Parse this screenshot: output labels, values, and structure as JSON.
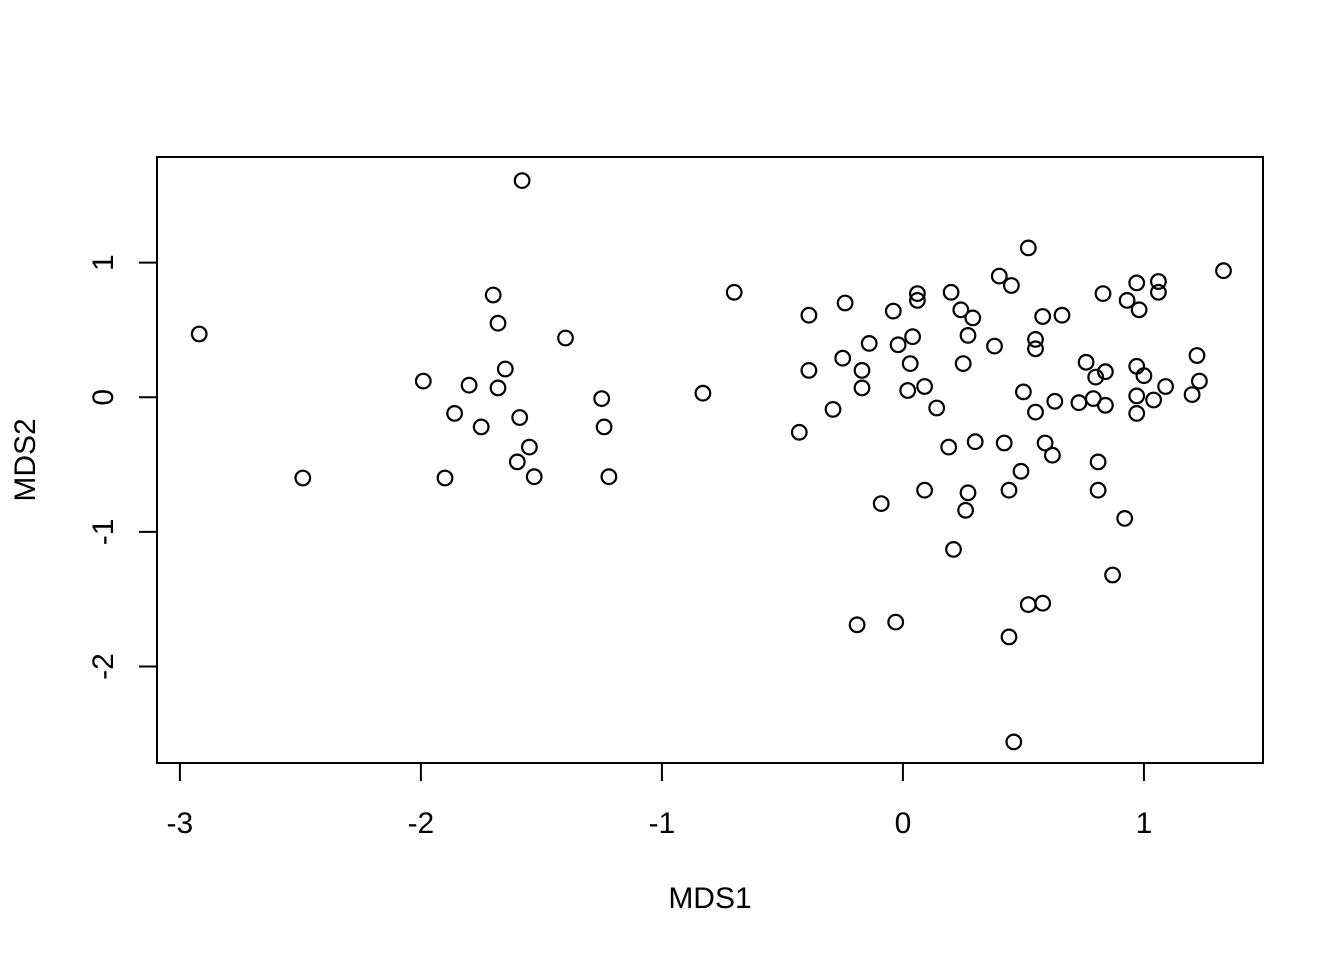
{
  "figure": {
    "background": "#ffffff",
    "axis_color": "#000000",
    "text_color": "#000000"
  },
  "chart_data": {
    "type": "scatter",
    "title": "",
    "xlabel": "MDS1",
    "ylabel": "MDS2",
    "marker": "open-circle",
    "marker_color": "#000000",
    "grid": false,
    "legend_position": "none",
    "xlim": [
      -3.095,
      1.494
    ],
    "ylim": [
      -2.717,
      1.785
    ],
    "x_ticks": [
      -3,
      -2,
      -1,
      0,
      1
    ],
    "x_tick_labels": [
      "-3",
      "-2",
      "-1",
      "0",
      "1"
    ],
    "y_ticks": [
      -2,
      -1,
      0,
      1
    ],
    "y_tick_labels": [
      "-2",
      "-1",
      "0",
      "1"
    ],
    "points": [
      [
        -2.92,
        0.47
      ],
      [
        -2.49,
        -0.6
      ],
      [
        -1.99,
        0.12
      ],
      [
        -1.9,
        -0.6
      ],
      [
        -1.86,
        -0.12
      ],
      [
        -1.8,
        0.09
      ],
      [
        -1.75,
        -0.22
      ],
      [
        -1.7,
        0.76
      ],
      [
        -1.68,
        0.55
      ],
      [
        -1.68,
        0.07
      ],
      [
        -1.65,
        0.21
      ],
      [
        -1.6,
        -0.48
      ],
      [
        -1.59,
        -0.15
      ],
      [
        -1.58,
        1.61
      ],
      [
        -1.55,
        -0.37
      ],
      [
        -1.53,
        -0.59
      ],
      [
        -1.4,
        0.44
      ],
      [
        -1.25,
        -0.01
      ],
      [
        -1.24,
        -0.22
      ],
      [
        -1.22,
        -0.59
      ],
      [
        -0.83,
        0.03
      ],
      [
        -0.7,
        0.78
      ],
      [
        -0.43,
        -0.26
      ],
      [
        -0.39,
        0.61
      ],
      [
        -0.39,
        0.2
      ],
      [
        -0.29,
        -0.09
      ],
      [
        -0.25,
        0.29
      ],
      [
        -0.24,
        0.7
      ],
      [
        -0.19,
        -1.69
      ],
      [
        -0.17,
        0.2
      ],
      [
        -0.17,
        0.07
      ],
      [
        -0.14,
        0.4
      ],
      [
        -0.09,
        -0.79
      ],
      [
        -0.04,
        0.64
      ],
      [
        -0.03,
        -1.67
      ],
      [
        -0.02,
        0.39
      ],
      [
        0.02,
        0.05
      ],
      [
        0.03,
        0.25
      ],
      [
        0.04,
        0.45
      ],
      [
        0.06,
        0.77
      ],
      [
        0.06,
        0.72
      ],
      [
        0.09,
        0.08
      ],
      [
        0.09,
        -0.69
      ],
      [
        0.14,
        -0.08
      ],
      [
        0.19,
        -0.37
      ],
      [
        0.2,
        0.78
      ],
      [
        0.21,
        -1.13
      ],
      [
        0.24,
        0.65
      ],
      [
        0.25,
        0.25
      ],
      [
        0.26,
        -0.84
      ],
      [
        0.27,
        0.46
      ],
      [
        0.27,
        -0.71
      ],
      [
        0.29,
        0.59
      ],
      [
        0.3,
        -0.33
      ],
      [
        0.38,
        0.38
      ],
      [
        0.4,
        0.9
      ],
      [
        0.42,
        -0.34
      ],
      [
        0.44,
        -0.69
      ],
      [
        0.44,
        -1.78
      ],
      [
        0.45,
        0.83
      ],
      [
        0.46,
        -2.56
      ],
      [
        0.49,
        -0.55
      ],
      [
        0.5,
        0.04
      ],
      [
        0.52,
        1.11
      ],
      [
        0.52,
        -1.54
      ],
      [
        0.55,
        0.43
      ],
      [
        0.55,
        0.36
      ],
      [
        0.55,
        -0.11
      ],
      [
        0.58,
        0.6
      ],
      [
        0.58,
        -1.53
      ],
      [
        0.59,
        -0.34
      ],
      [
        0.62,
        -0.43
      ],
      [
        0.63,
        -0.03
      ],
      [
        0.66,
        0.61
      ],
      [
        0.73,
        -0.04
      ],
      [
        0.76,
        0.26
      ],
      [
        0.79,
        -0.01
      ],
      [
        0.8,
        0.15
      ],
      [
        0.81,
        -0.48
      ],
      [
        0.81,
        -0.69
      ],
      [
        0.83,
        0.77
      ],
      [
        0.84,
        0.19
      ],
      [
        0.84,
        -0.06
      ],
      [
        0.87,
        -1.32
      ],
      [
        0.92,
        -0.9
      ],
      [
        0.93,
        0.72
      ],
      [
        0.97,
        0.85
      ],
      [
        0.97,
        0.23
      ],
      [
        0.97,
        0.01
      ],
      [
        0.97,
        -0.12
      ],
      [
        0.98,
        0.65
      ],
      [
        1.0,
        0.16
      ],
      [
        1.04,
        -0.02
      ],
      [
        1.06,
        0.86
      ],
      [
        1.06,
        0.78
      ],
      [
        1.09,
        0.08
      ],
      [
        1.2,
        0.02
      ],
      [
        1.22,
        0.31
      ],
      [
        1.23,
        0.12
      ],
      [
        1.33,
        0.94
      ]
    ]
  }
}
